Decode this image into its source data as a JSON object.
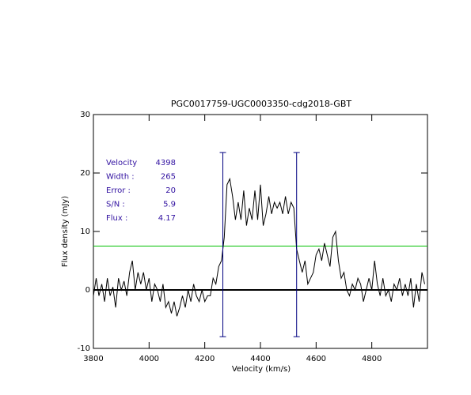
{
  "chart_data": {
    "type": "line",
    "title": "PGC0017759-UGC0003350-cdg2018-GBT",
    "xlabel": "Velocity (km/s)",
    "ylabel": "Flux density (mJy)",
    "x": [
      3800,
      3810,
      3820,
      3830,
      3840,
      3850,
      3860,
      3870,
      3880,
      3890,
      3900,
      3910,
      3920,
      3930,
      3940,
      3950,
      3960,
      3970,
      3980,
      3990,
      4000,
      4010,
      4020,
      4030,
      4040,
      4050,
      4060,
      4070,
      4080,
      4090,
      4100,
      4110,
      4120,
      4130,
      4140,
      4150,
      4160,
      4170,
      4180,
      4190,
      4200,
      4210,
      4220,
      4230,
      4240,
      4250,
      4260,
      4270,
      4280,
      4290,
      4300,
      4310,
      4320,
      4330,
      4340,
      4350,
      4360,
      4370,
      4380,
      4390,
      4400,
      4410,
      4420,
      4430,
      4440,
      4450,
      4460,
      4470,
      4480,
      4490,
      4500,
      4510,
      4520,
      4530,
      4540,
      4550,
      4560,
      4570,
      4580,
      4590,
      4600,
      4610,
      4620,
      4630,
      4640,
      4650,
      4660,
      4670,
      4680,
      4690,
      4700,
      4710,
      4720,
      4730,
      4740,
      4750,
      4760,
      4770,
      4780,
      4790,
      4800,
      4810,
      4820,
      4830,
      4840,
      4850,
      4860,
      4870,
      4880,
      4890,
      4900,
      4910,
      4920,
      4930,
      4940,
      4950,
      4960,
      4970,
      4980,
      4990
    ],
    "values": [
      -1,
      2,
      -1,
      1,
      -2,
      2,
      -1,
      0.5,
      -3,
      2,
      0,
      1.5,
      -1,
      3,
      5,
      0,
      3,
      1,
      3,
      0,
      2,
      -2,
      1,
      0,
      -2,
      1,
      -3,
      -2,
      -4,
      -2,
      -4.5,
      -3,
      -1,
      -3,
      0,
      -2,
      1,
      -1,
      -2,
      0,
      -2,
      -1,
      -1,
      2,
      1,
      4,
      5,
      9,
      18,
      19,
      16,
      12,
      15,
      12,
      17,
      11,
      14,
      12,
      17,
      12,
      18,
      11,
      13,
      16,
      13,
      15,
      14,
      15,
      13,
      16,
      13,
      15,
      14,
      7,
      5,
      3,
      5,
      1,
      2,
      3,
      6,
      7,
      5,
      8,
      6,
      4,
      9,
      10,
      5,
      2,
      3,
      0,
      -1,
      1,
      0,
      2,
      1,
      -2,
      0,
      2,
      0,
      5,
      1,
      -1,
      2,
      -1,
      0,
      -2,
      1,
      0,
      2,
      -1,
      1,
      -1,
      2,
      -3,
      1,
      -2,
      3,
      1
    ],
    "color": "#000000",
    "xlim": [
      3800,
      5000
    ],
    "xticks": [
      3800,
      4000,
      4200,
      4400,
      4600,
      4800
    ],
    "ylim": [
      -10,
      30
    ],
    "yticks": [
      -10,
      0,
      10,
      20,
      30
    ],
    "hlines": [
      {
        "y": 0,
        "color": "#000000"
      },
      {
        "y": 7.5,
        "color": "#00c000"
      }
    ],
    "vlines": [
      {
        "x": 4265,
        "ylow": -8,
        "yhigh": 23.5,
        "color": "#000080"
      },
      {
        "x": 4530,
        "ylow": -8,
        "yhigh": 23.5,
        "color": "#000080"
      }
    ],
    "info": [
      {
        "label": "Velocity",
        "value": 4398
      },
      {
        "label": "Width :",
        "value": 265
      },
      {
        "label": "Error :",
        "value": 20
      },
      {
        "label": "S/N :",
        "value": 5.9
      },
      {
        "label": "Flux :",
        "value": 4.17
      }
    ],
    "info_color": "#3010a0"
  }
}
